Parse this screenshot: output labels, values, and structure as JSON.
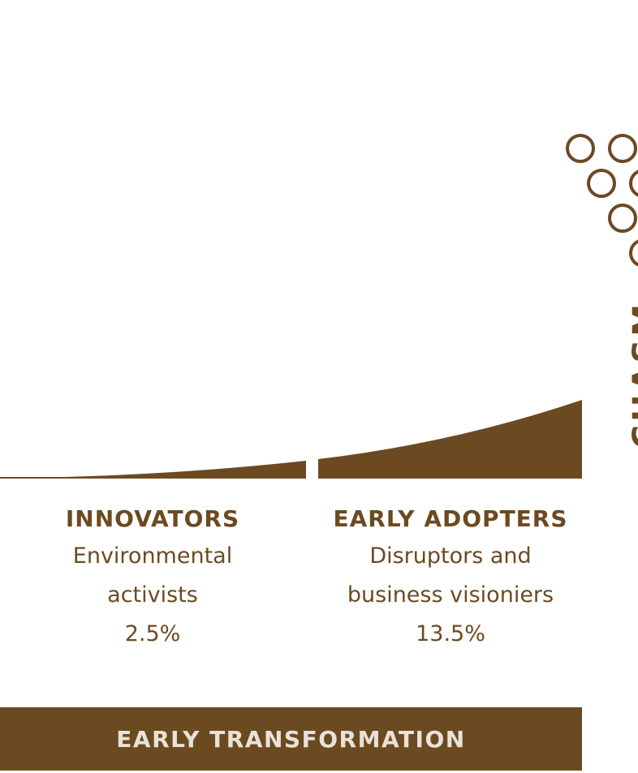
{
  "colors": {
    "brown": "#6c4a21",
    "banner_text": "#e9e2d8",
    "background": "#ffffff"
  },
  "segments": [
    {
      "title": "INNOVATORS",
      "desc_line1": "Environmental",
      "desc_line2": "activists",
      "percent": "2.5%"
    },
    {
      "title": "EARLY ADOPTERS",
      "desc_line1": "Disruptors and",
      "desc_line2": "business visioniers",
      "percent": "13.5%"
    }
  ],
  "chasm": {
    "label": "CHASM"
  },
  "phase": {
    "label": "EARLY TRANSFORMATION"
  }
}
